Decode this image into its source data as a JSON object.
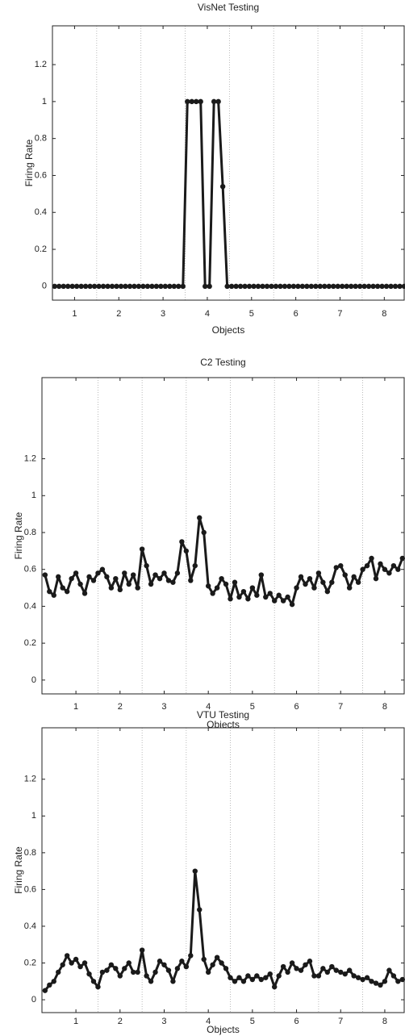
{
  "chart_data": [
    {
      "type": "line",
      "title": "VisNet Testing",
      "xlabel": "Objects",
      "ylabel": "Firing Rate",
      "color": "#1a1a1a",
      "x": [
        0.55,
        0.65,
        0.75,
        0.85,
        0.95,
        1.05,
        1.15,
        1.25,
        1.35,
        1.45,
        1.55,
        1.65,
        1.75,
        1.85,
        1.95,
        2.05,
        2.15,
        2.25,
        2.35,
        2.45,
        2.55,
        2.65,
        2.75,
        2.85,
        2.95,
        3.05,
        3.15,
        3.25,
        3.35,
        3.45,
        3.55,
        3.65,
        3.75,
        3.85,
        3.95,
        4.05,
        4.15,
        4.25,
        4.35,
        4.45,
        4.55,
        4.65,
        4.75,
        4.85,
        4.95,
        5.05,
        5.15,
        5.25,
        5.35,
        5.45,
        5.55,
        5.65,
        5.75,
        5.85,
        5.95,
        6.05,
        6.15,
        6.25,
        6.35,
        6.45,
        6.55,
        6.65,
        6.75,
        6.85,
        6.95,
        7.05,
        7.15,
        7.25,
        7.35,
        7.45,
        7.55,
        7.65,
        7.75,
        7.85,
        7.95,
        8.05,
        8.15,
        8.25,
        8.35,
        8.45
      ],
      "values": [
        0,
        0,
        0,
        0,
        0,
        0,
        0,
        0,
        0,
        0,
        0,
        0,
        0,
        0,
        0,
        0,
        0,
        0,
        0,
        0,
        0,
        0,
        0,
        0,
        0,
        0,
        0,
        0,
        0,
        0,
        1,
        1,
        1,
        1,
        0,
        0,
        1,
        1,
        0.54,
        0,
        0,
        0,
        0,
        0,
        0,
        0,
        0,
        0,
        0,
        0,
        0,
        0,
        0,
        0,
        0,
        0,
        0,
        0,
        0,
        0,
        0,
        0,
        0,
        0,
        0,
        0,
        0,
        0,
        0,
        0,
        0,
        0,
        0,
        0,
        0,
        0,
        0,
        0,
        0,
        0
      ],
      "xlim": [
        0.5,
        8.45
      ],
      "ylim": [
        -0.075,
        1.41
      ],
      "xticks": [
        1,
        2,
        3,
        4,
        5,
        6,
        7,
        8
      ],
      "yticks": [
        0,
        0.2,
        0.4,
        0.6,
        0.8,
        1,
        1.2
      ],
      "dividers": [
        1.5,
        2.5,
        3.5,
        4.5,
        5.5,
        6.5,
        7.5
      ]
    },
    {
      "type": "line",
      "title": "C2 Testing",
      "xlabel": "Objects",
      "ylabel": "Firing Rate",
      "color": "#1a1a1a",
      "x": [
        0.3,
        0.4,
        0.5,
        0.6,
        0.7,
        0.8,
        0.9,
        1.0,
        1.1,
        1.2,
        1.3,
        1.4,
        1.5,
        1.6,
        1.7,
        1.8,
        1.9,
        2.0,
        2.1,
        2.2,
        2.3,
        2.4,
        2.5,
        2.6,
        2.7,
        2.8,
        2.9,
        3.0,
        3.1,
        3.2,
        3.3,
        3.4,
        3.5,
        3.6,
        3.7,
        3.8,
        3.9,
        4.0,
        4.1,
        4.2,
        4.3,
        4.4,
        4.5,
        4.6,
        4.7,
        4.8,
        4.9,
        5.0,
        5.1,
        5.2,
        5.3,
        5.4,
        5.5,
        5.6,
        5.7,
        5.8,
        5.9,
        6.0,
        6.1,
        6.2,
        6.3,
        6.4,
        6.5,
        6.6,
        6.7,
        6.8,
        6.9,
        7.0,
        7.1,
        7.2,
        7.3,
        7.4,
        7.5,
        7.6,
        7.7,
        7.8,
        7.9,
        8.0,
        8.1,
        8.2,
        8.3,
        8.4
      ],
      "values": [
        0.57,
        0.48,
        0.46,
        0.56,
        0.5,
        0.48,
        0.55,
        0.58,
        0.52,
        0.47,
        0.56,
        0.54,
        0.58,
        0.6,
        0.56,
        0.5,
        0.55,
        0.49,
        0.58,
        0.52,
        0.57,
        0.5,
        0.71,
        0.62,
        0.52,
        0.57,
        0.55,
        0.58,
        0.54,
        0.53,
        0.58,
        0.75,
        0.7,
        0.54,
        0.62,
        0.88,
        0.8,
        0.51,
        0.47,
        0.5,
        0.55,
        0.52,
        0.44,
        0.53,
        0.45,
        0.48,
        0.44,
        0.5,
        0.46,
        0.57,
        0.45,
        0.47,
        0.43,
        0.46,
        0.43,
        0.45,
        0.41,
        0.5,
        0.56,
        0.52,
        0.55,
        0.5,
        0.58,
        0.53,
        0.48,
        0.53,
        0.61,
        0.62,
        0.57,
        0.5,
        0.56,
        0.53,
        0.6,
        0.62,
        0.66,
        0.55,
        0.63,
        0.6,
        0.58,
        0.62,
        0.6,
        0.66
      ],
      "xlim": [
        0.23,
        8.44
      ],
      "ylim": [
        -0.075,
        1.64
      ],
      "xticks": [
        1,
        2,
        3,
        4,
        5,
        6,
        7,
        8
      ],
      "yticks": [
        0,
        0.2,
        0.4,
        0.6,
        0.8,
        1,
        1.2
      ],
      "dividers": [
        1.5,
        2.5,
        3.5,
        4.5,
        5.5,
        6.5,
        7.5
      ]
    },
    {
      "type": "line",
      "title": "VTU Testing",
      "xlabel": "Objects",
      "ylabel": "Firing Rate",
      "color": "#1a1a1a",
      "x": [
        0.3,
        0.4,
        0.5,
        0.6,
        0.7,
        0.8,
        0.9,
        1.0,
        1.1,
        1.2,
        1.3,
        1.4,
        1.5,
        1.6,
        1.7,
        1.8,
        1.9,
        2.0,
        2.1,
        2.2,
        2.3,
        2.4,
        2.5,
        2.6,
        2.7,
        2.8,
        2.9,
        3.0,
        3.1,
        3.2,
        3.3,
        3.4,
        3.5,
        3.6,
        3.7,
        3.8,
        3.9,
        4.0,
        4.1,
        4.2,
        4.3,
        4.4,
        4.5,
        4.6,
        4.7,
        4.8,
        4.9,
        5.0,
        5.1,
        5.2,
        5.3,
        5.4,
        5.5,
        5.6,
        5.7,
        5.8,
        5.9,
        6.0,
        6.1,
        6.2,
        6.3,
        6.4,
        6.5,
        6.6,
        6.7,
        6.8,
        6.9,
        7.0,
        7.1,
        7.2,
        7.3,
        7.4,
        7.5,
        7.6,
        7.7,
        7.8,
        7.9,
        8.0,
        8.1,
        8.2,
        8.3,
        8.4
      ],
      "values": [
        0.05,
        0.08,
        0.1,
        0.15,
        0.19,
        0.24,
        0.2,
        0.22,
        0.18,
        0.2,
        0.14,
        0.1,
        0.07,
        0.15,
        0.16,
        0.19,
        0.17,
        0.13,
        0.17,
        0.2,
        0.15,
        0.15,
        0.27,
        0.13,
        0.1,
        0.15,
        0.21,
        0.19,
        0.16,
        0.1,
        0.17,
        0.21,
        0.18,
        0.24,
        0.7,
        0.49,
        0.22,
        0.15,
        0.19,
        0.23,
        0.2,
        0.17,
        0.12,
        0.1,
        0.12,
        0.1,
        0.13,
        0.11,
        0.13,
        0.11,
        0.12,
        0.14,
        0.07,
        0.13,
        0.18,
        0.15,
        0.2,
        0.17,
        0.16,
        0.19,
        0.21,
        0.13,
        0.13,
        0.17,
        0.15,
        0.18,
        0.16,
        0.15,
        0.14,
        0.16,
        0.13,
        0.12,
        0.11,
        0.12,
        0.1,
        0.09,
        0.08,
        0.1,
        0.16,
        0.13,
        0.1,
        0.11
      ],
      "xlim": [
        0.23,
        8.44
      ],
      "ylim": [
        -0.07,
        1.48
      ],
      "xticks": [
        1,
        2,
        3,
        4,
        5,
        6,
        7,
        8
      ],
      "yticks": [
        0,
        0.2,
        0.4,
        0.6,
        0.8,
        1,
        1.2
      ],
      "dividers": [
        1.5,
        2.5,
        3.5,
        4.5,
        5.5,
        6.5,
        7.5
      ]
    }
  ]
}
